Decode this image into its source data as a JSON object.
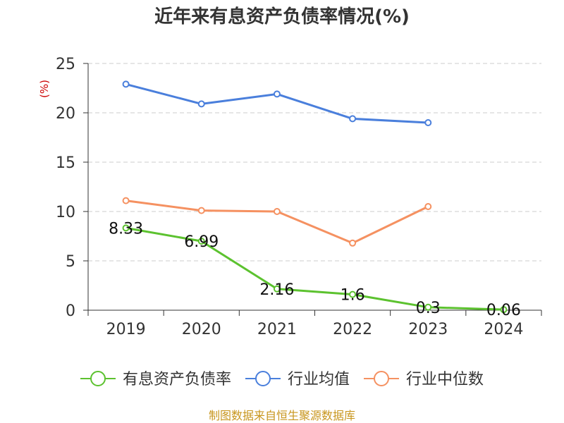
{
  "chart_data": {
    "type": "line",
    "title": "近年来有息资产负债率情况(%)",
    "ylabel": "(%)",
    "categories": [
      "2019",
      "2020",
      "2021",
      "2022",
      "2023",
      "2024"
    ],
    "ylim": [
      0,
      25
    ],
    "yticks": [
      0,
      5,
      10,
      15,
      20,
      25
    ],
    "grid": true,
    "legend_position": "bottom",
    "series": [
      {
        "name": "有息资产负债率",
        "color": "#5cc22f",
        "values": [
          8.33,
          6.99,
          2.16,
          1.6,
          0.3,
          0.06
        ],
        "labels": [
          "8.33",
          "6.99",
          "2.16",
          "1.6",
          "0.3",
          "0.06"
        ]
      },
      {
        "name": "行业均值",
        "color": "#4a7fdc",
        "values": [
          22.9,
          20.9,
          21.9,
          19.4,
          19.0,
          null
        ]
      },
      {
        "name": "行业中位数",
        "color": "#f59161",
        "values": [
          11.1,
          10.1,
          10.0,
          6.8,
          10.5,
          null
        ]
      }
    ]
  },
  "source": "制图数据来自恒生聚源数据库"
}
